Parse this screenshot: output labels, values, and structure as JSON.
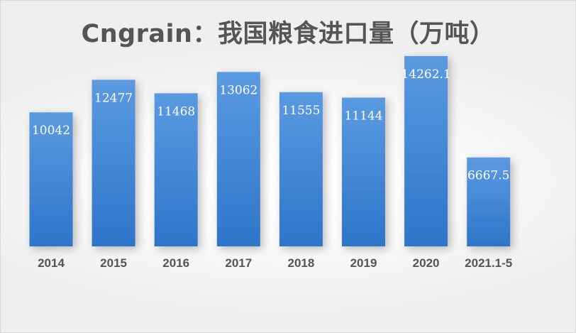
{
  "chart_data": {
    "type": "bar",
    "title": "Cngrain：我国粮食进口量（万吨）",
    "categories": [
      "2014",
      "2015",
      "2016",
      "2017",
      "2018",
      "2019",
      "2020",
      "2021.1-5"
    ],
    "values": [
      10042,
      12477,
      11468,
      13062,
      11555,
      11144,
      14262.1,
      6667.5
    ],
    "data_labels": [
      "10042",
      "12477",
      "11468",
      "13062",
      "11555",
      "11144",
      "14262.1",
      "6667.5"
    ],
    "xlabel": "",
    "ylabel": "",
    "ylim": [
      0,
      15000
    ],
    "grid": false,
    "legend": "none",
    "colors": {
      "bar_top": "#5a9ae0",
      "bar_bottom": "#2e75c9",
      "label": "#ffffff",
      "axis_text": "#555555",
      "title": "#555555"
    }
  }
}
